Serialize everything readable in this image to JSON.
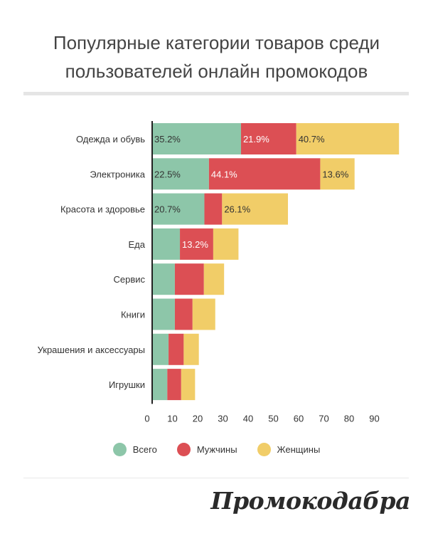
{
  "title": "Популярные категории товаров среди пользователей онлайн промокодов",
  "brand": "Промокодабра",
  "colors": {
    "total": "#8dc6a9",
    "men": "#dc4f54",
    "women": "#f1cd68",
    "axis": "#222222"
  },
  "legend": [
    {
      "label": "Всего",
      "color": "#8dc6a9"
    },
    {
      "label": "Мужчины",
      "color": "#dc4f54"
    },
    {
      "label": "Женщины",
      "color": "#f1cd68"
    }
  ],
  "chart_data": {
    "type": "bar",
    "orientation": "horizontal",
    "stacked": true,
    "categories": [
      "Одежда и обувь",
      "Электроника",
      "Красота и здоровье",
      "Еда",
      "Сервис",
      "Книги",
      "Украшения и аксессуары",
      "Игрушки"
    ],
    "series": [
      {
        "name": "Всего",
        "values": [
          35.2,
          22.5,
          20.7,
          11,
          9,
          9,
          6.5,
          6
        ],
        "labels": [
          "35.2%",
          "22.5%",
          "20.7%",
          "",
          "",
          "",
          "",
          ""
        ]
      },
      {
        "name": "Мужчины",
        "values": [
          21.9,
          44.1,
          7,
          13.2,
          11.5,
          7,
          6,
          5.5
        ],
        "labels": [
          "21.9%",
          "44.1%",
          "",
          "13.2%",
          "",
          "",
          "",
          ""
        ]
      },
      {
        "name": "Женщины",
        "values": [
          40.7,
          13.6,
          26.1,
          10,
          8,
          9,
          6,
          5.5
        ],
        "labels": [
          "40.7%",
          "13.6%",
          "26.1%",
          "",
          "",
          "",
          "",
          ""
        ]
      }
    ],
    "xticks": [
      0,
      10,
      20,
      30,
      40,
      50,
      60,
      70,
      80,
      90
    ],
    "xlim": [
      0,
      100
    ],
    "grid": false,
    "legend_position": "bottom"
  }
}
